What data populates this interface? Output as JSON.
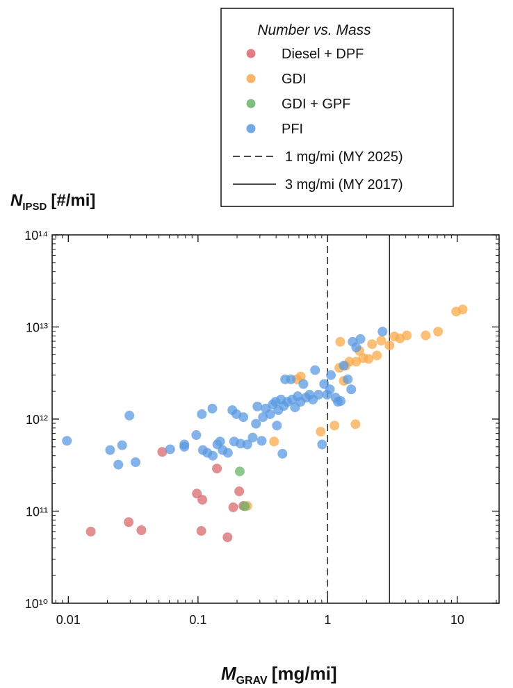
{
  "chart_data": {
    "type": "scatter",
    "log_x": true,
    "log_y": true,
    "xlabel": {
      "symbol": "M",
      "subscript": "GRAV",
      "unit": "[mg/mi]"
    },
    "ylabel": {
      "symbol": "N",
      "subscript": "IPSD",
      "unit": "[#/mi]"
    },
    "legend_title": "Number vs. Mass",
    "xlim": [
      0.0075,
      21
    ],
    "ylim": [
      10000000000.0,
      100000000000000.0
    ],
    "xticks": [
      0.01,
      0.1,
      1,
      10
    ],
    "yticks": [
      {
        "value": 10000000000.0,
        "label": "10¹⁰"
      },
      {
        "value": 100000000000.0,
        "label": "10¹¹"
      },
      {
        "value": 1000000000000.0,
        "label": "10¹²"
      },
      {
        "value": 10000000000000.0,
        "label": "10¹³"
      },
      {
        "value": 100000000000000.0,
        "label": "10¹⁴"
      }
    ],
    "reference_lines": [
      {
        "x": 1,
        "label": "1 mg/mi (MY 2025)",
        "style": "dashed"
      },
      {
        "x": 3,
        "label": "3 mg/mi (MY 2017)",
        "style": "solid"
      }
    ],
    "series": [
      {
        "name": "Diesel + DPF",
        "color": "#d9686b",
        "x": [
          0.0149,
          0.0292,
          0.0366,
          0.053,
          0.098,
          0.108,
          0.106,
          0.14,
          0.169,
          0.187,
          0.208,
          0.224
        ],
        "values": [
          60000000000.0,
          76000000000.0,
          62000000000.0,
          440000000000.0,
          155000000000.0,
          133000000000.0,
          61000000000.0,
          290000000000.0,
          52000000000.0,
          110000000000.0,
          164000000000.0,
          114000000000.0
        ]
      },
      {
        "name": "GDI",
        "color": "#f9a94b",
        "x": [
          0.386,
          0.883,
          1.13,
          1.64,
          1.25,
          1.76,
          2.2,
          2.59,
          3.0,
          3.27,
          3.61,
          4.08,
          5.7,
          7.1,
          9.8,
          11,
          1.47,
          1.66,
          1.88,
          2.07,
          2.4,
          1.38,
          1.23,
          1.33,
          0.58,
          0.62,
          0.24
        ],
        "values": [
          570000000000.0,
          730000000000.0,
          850000000000.0,
          880000000000.0,
          6900000000000.0,
          5500000000000.0,
          6500000000000.0,
          7100000000000.0,
          6300000000000.0,
          7900000000000.0,
          7500000000000.0,
          8100000000000.0,
          8100000000000.0,
          8900000000000.0,
          14700000000000.0,
          15500000000000.0,
          4200000000000.0,
          4200000000000.0,
          4600000000000.0,
          4500000000000.0,
          4900000000000.0,
          3800000000000.0,
          3600000000000.0,
          2600000000000.0,
          2700000000000.0,
          2900000000000.0,
          114000000000.0
        ]
      },
      {
        "name": "GDI + GPF",
        "color": "#6ab46a",
        "x": [
          0.21,
          0.23
        ],
        "values": [
          270000000000.0,
          113000000000.0
        ]
      },
      {
        "name": "PFI",
        "color": "#5a9ae0",
        "x": [
          0.00975,
          0.021,
          0.026,
          0.0243,
          0.0296,
          0.033,
          0.061,
          0.0785,
          0.0785,
          0.097,
          0.107,
          0.109,
          0.118,
          0.129,
          0.13,
          0.141,
          0.148,
          0.155,
          0.17,
          0.184,
          0.198,
          0.213,
          0.224,
          0.19,
          0.24,
          0.264,
          0.28,
          0.287,
          0.31,
          0.317,
          0.333,
          0.36,
          0.377,
          0.396,
          0.406,
          0.416,
          0.437,
          0.459,
          0.448,
          0.489,
          0.52,
          0.533,
          0.56,
          0.588,
          0.618,
          0.65,
          0.682,
          0.725,
          0.77,
          0.8,
          0.85,
          0.906,
          0.94,
          0.99,
          1.04,
          1.06,
          1.15,
          1.2,
          1.26,
          1.33,
          1.43,
          1.56,
          1.66,
          1.79,
          2.65,
          1.52,
          0.47
        ],
        "values": [
          580000000000.0,
          460000000000.0,
          520000000000.0,
          320000000000.0,
          1090000000000.0,
          340000000000.0,
          470000000000.0,
          500000000000.0,
          530000000000.0,
          670000000000.0,
          1130000000000.0,
          460000000000.0,
          430000000000.0,
          1300000000000.0,
          400000000000.0,
          530000000000.0,
          570000000000.0,
          460000000000.0,
          430000000000.0,
          1250000000000.0,
          1130000000000.0,
          540000000000.0,
          1050000000000.0,
          570000000000.0,
          530000000000.0,
          630000000000.0,
          890000000000.0,
          1370000000000.0,
          580000000000.0,
          1050000000000.0,
          1300000000000.0,
          1130000000000.0,
          1440000000000.0,
          1540000000000.0,
          850000000000.0,
          1250000000000.0,
          1630000000000.0,
          1390000000000.0,
          420000000000.0,
          1540000000000.0,
          2700000000000.0,
          1630000000000.0,
          1340000000000.0,
          1770000000000.0,
          1540000000000.0,
          2400000000000.0,
          1710000000000.0,
          1840000000000.0,
          1630000000000.0,
          3400000000000.0,
          1840000000000.0,
          530000000000.0,
          2400000000000.0,
          1840000000000.0,
          2100000000000.0,
          3000000000000.0,
          1710000000000.0,
          1540000000000.0,
          1570000000000.0,
          3800000000000.0,
          2700000000000.0,
          6900000000000.0,
          6000000000000.0,
          7400000000000.0,
          8900000000000.0,
          2100000000000.0,
          2700000000000.0
        ]
      }
    ]
  }
}
